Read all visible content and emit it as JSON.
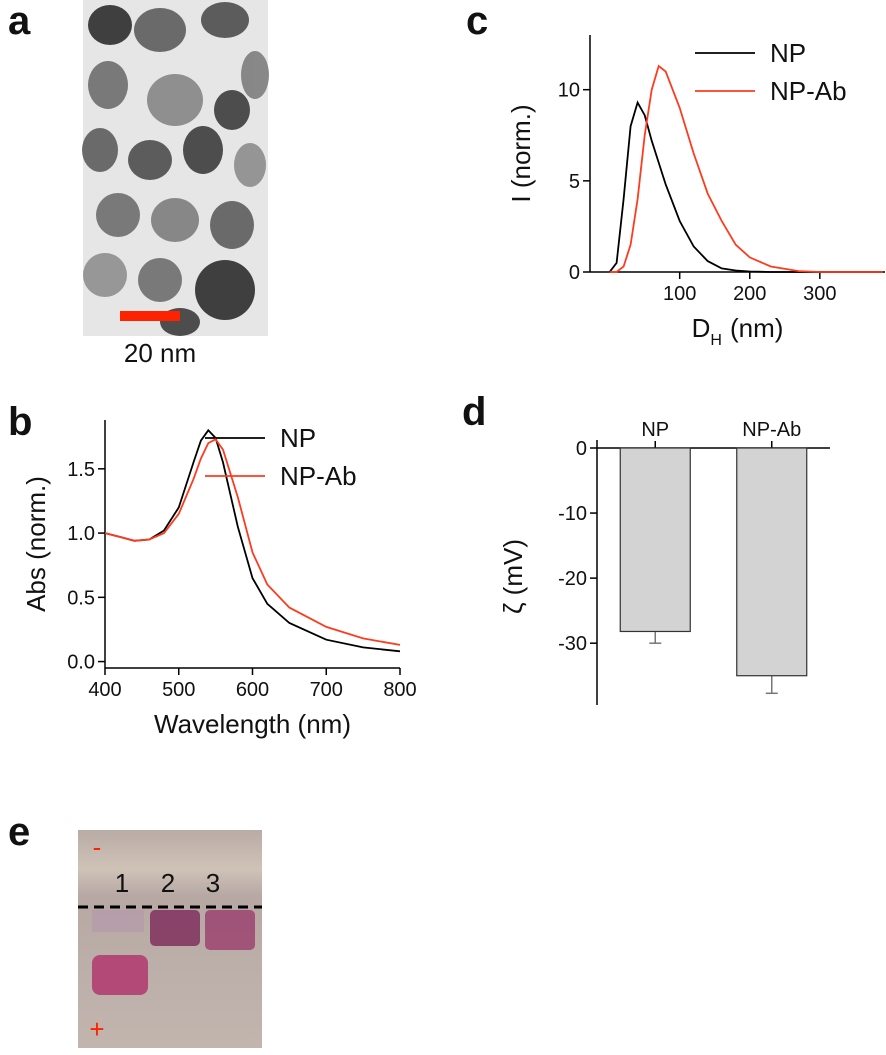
{
  "panel_a": {
    "label": "a",
    "scale_bar": "20 nm"
  },
  "panel_e": {
    "label": "e",
    "cathode": "-",
    "anode": "+",
    "lanes": [
      "1",
      "2",
      "3"
    ]
  },
  "chart_data": [
    {
      "type": "line",
      "panel": "b",
      "xlabel": "Wavelength (nm)",
      "ylabel": "Abs (norm.)",
      "xlim": [
        400,
        800
      ],
      "ylim": [
        -0.05,
        1.88
      ],
      "xticks": [
        400,
        500,
        600,
        700,
        800
      ],
      "yticks": [
        {
          "value": 0,
          "label": "0.0"
        },
        0.5,
        {
          "value": 1,
          "label": "1.0"
        },
        1.5
      ],
      "legend": "upper right",
      "x": [
        400,
        420,
        440,
        460,
        480,
        500,
        520,
        530,
        540,
        550,
        560,
        580,
        600,
        620,
        650,
        700,
        750,
        800
      ],
      "series": [
        {
          "name": "NP",
          "color": "#000000",
          "values": [
            1.0,
            0.97,
            0.94,
            0.95,
            1.02,
            1.2,
            1.55,
            1.72,
            1.8,
            1.74,
            1.55,
            1.05,
            0.65,
            0.45,
            0.3,
            0.17,
            0.11,
            0.08
          ]
        },
        {
          "name": "NP-Ab",
          "color": "#ff3b1f",
          "values": [
            1.0,
            0.97,
            0.94,
            0.95,
            1.0,
            1.15,
            1.42,
            1.58,
            1.7,
            1.73,
            1.65,
            1.28,
            0.85,
            0.6,
            0.42,
            0.27,
            0.18,
            0.13
          ]
        }
      ]
    },
    {
      "type": "line",
      "panel": "c",
      "xlabel": "D",
      "xlabel_sub": "H",
      "xlabel_unit": "(nm)",
      "ylabel": "I (norm.)",
      "xlim": [
        -28,
        393
      ],
      "ylim": [
        0,
        13
      ],
      "xticks": [
        100,
        200,
        300
      ],
      "yticks": [
        0,
        5,
        10
      ],
      "legend": "upper right",
      "x": [
        0,
        10,
        20,
        30,
        40,
        50,
        60,
        70,
        80,
        100,
        120,
        140,
        160,
        180,
        200,
        230,
        270,
        300,
        390
      ],
      "series": [
        {
          "name": "NP",
          "color": "#000000",
          "values": [
            0,
            0.5,
            4,
            8,
            9.3,
            8.6,
            7.2,
            6,
            4.8,
            2.8,
            1.4,
            0.6,
            0.2,
            0.08,
            0.03,
            0,
            0,
            0,
            0
          ]
        },
        {
          "name": "NP-Ab",
          "color": "#ff3b1f",
          "values": [
            0,
            0,
            0.3,
            1.5,
            4,
            7.5,
            10,
            11.3,
            11,
            9,
            6.5,
            4.3,
            2.8,
            1.5,
            0.8,
            0.3,
            0.05,
            0,
            0
          ]
        }
      ]
    },
    {
      "type": "bar",
      "panel": "d",
      "ylabel": "ζ (mV)",
      "ylim": [
        -39.5,
        0
      ],
      "yticks": [
        0,
        -10,
        -20,
        -30
      ],
      "categories": [
        "NP",
        "NP-Ab"
      ],
      "values": [
        -28.2,
        -35
      ],
      "errors": [
        1.8,
        2.7
      ],
      "color": "#d3d3d3"
    }
  ]
}
